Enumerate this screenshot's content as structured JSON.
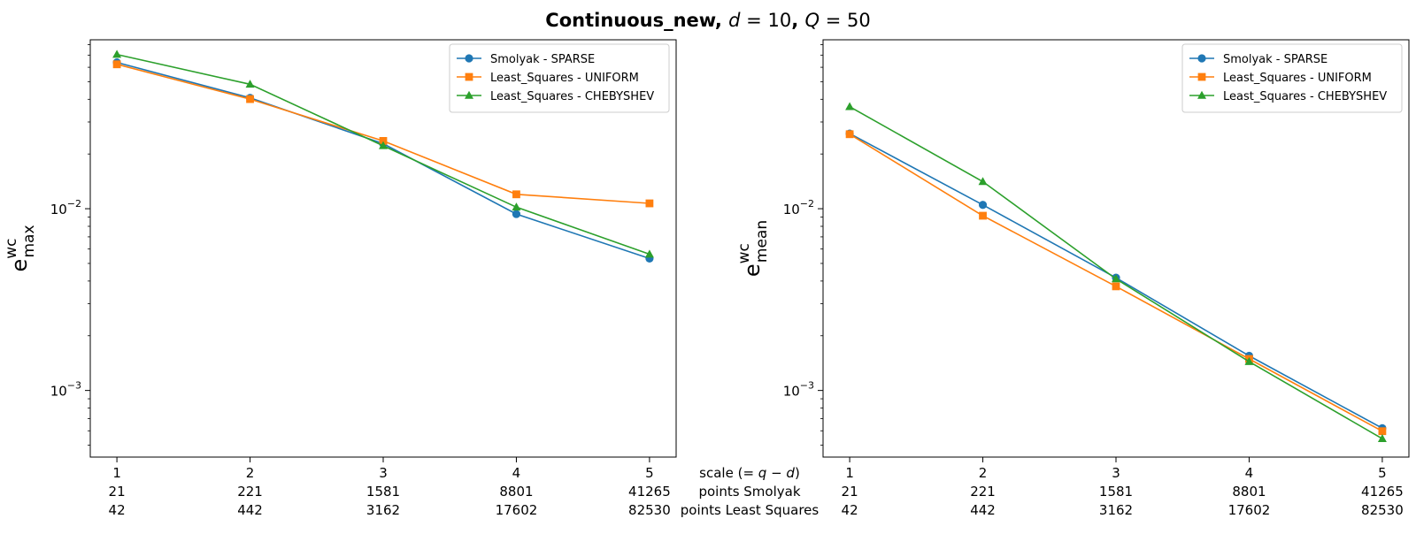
{
  "title": {
    "main": "Continuous_new",
    "params": [
      {
        "var": "d",
        "value": "10"
      },
      {
        "var": "Q",
        "value": "50"
      }
    ]
  },
  "bottom_rows": {
    "labels": [
      "scale (= q − d)",
      "points Smolyak",
      "points Least Squares"
    ],
    "points_smolyak": [
      "21",
      "221",
      "1581",
      "8801",
      "41265"
    ],
    "points_least_squares": [
      "42",
      "442",
      "3162",
      "17602",
      "82530"
    ]
  },
  "chart_data": [
    {
      "type": "line",
      "ylabel": {
        "base": "e",
        "sup": "wc",
        "sub": "max"
      },
      "yscale": "log",
      "ylim": [
        0.00043,
        0.085
      ],
      "ytick_labels": [
        {
          "value": 0.01,
          "base": "10",
          "exp": "−2"
        },
        {
          "value": 0.001,
          "base": "10",
          "exp": "−3"
        }
      ],
      "x": [
        1,
        2,
        3,
        4,
        5
      ],
      "xtick_labels": [
        "1",
        "2",
        "3",
        "4",
        "5"
      ],
      "xlim": [
        0.8,
        5.2
      ],
      "legend": "top-right",
      "grid": false,
      "series": [
        {
          "name": "Smolyak - SPARSE",
          "marker": "circle",
          "color": "#1f77b4",
          "values": [
            0.0638,
            0.0407,
            0.0228,
            0.00935,
            0.00532
          ]
        },
        {
          "name": "Least_Squares - UNIFORM",
          "marker": "square",
          "color": "#ff7f0e",
          "values": [
            0.0623,
            0.0401,
            0.0236,
            0.012,
            0.0107
          ]
        },
        {
          "name": "Least_Squares - CHEBYSHEV",
          "marker": "triangle",
          "color": "#2ca02c",
          "values": [
            0.0706,
            0.0484,
            0.0222,
            0.0102,
            0.00562
          ]
        }
      ]
    },
    {
      "type": "line",
      "ylabel": {
        "base": "e",
        "sup": "wc",
        "sub": "mean"
      },
      "yscale": "log",
      "ylim": [
        0.00043,
        0.085
      ],
      "ytick_labels": [
        {
          "value": 0.01,
          "base": "10",
          "exp": "−2"
        },
        {
          "value": 0.001,
          "base": "10",
          "exp": "−3"
        }
      ],
      "x": [
        1,
        2,
        3,
        4,
        5
      ],
      "xtick_labels": [
        "1",
        "2",
        "3",
        "4",
        "5"
      ],
      "xlim": [
        0.8,
        5.2
      ],
      "legend": "top-right",
      "grid": false,
      "series": [
        {
          "name": "Smolyak - SPARSE",
          "marker": "circle",
          "color": "#1f77b4",
          "values": [
            0.0259,
            0.0105,
            0.00417,
            0.00155,
            0.00062
          ]
        },
        {
          "name": "Least_Squares - UNIFORM",
          "marker": "square",
          "color": "#ff7f0e",
          "values": [
            0.0257,
            0.00915,
            0.00374,
            0.00149,
            0.000597
          ]
        },
        {
          "name": "Least_Squares - CHEBYSHEV",
          "marker": "triangle",
          "color": "#2ca02c",
          "values": [
            0.0364,
            0.0141,
            0.00411,
            0.00144,
            0.000543
          ]
        }
      ]
    }
  ]
}
